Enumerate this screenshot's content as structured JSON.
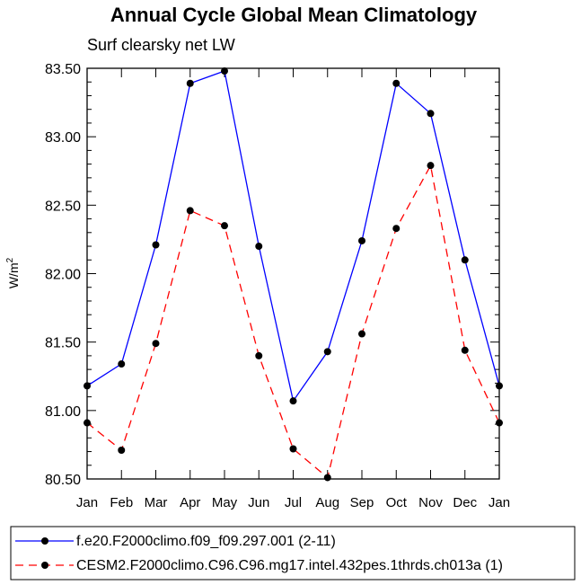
{
  "chart_data": {
    "type": "line",
    "title": "Annual Cycle Global Mean Climatology",
    "subtitle": "Surf clearsky net LW",
    "xlabel": "",
    "ylabel": "W/m",
    "ylabel_sup": "2",
    "categories": [
      "Jan",
      "Feb",
      "Mar",
      "Apr",
      "May",
      "Jun",
      "Jul",
      "Aug",
      "Sep",
      "Oct",
      "Nov",
      "Dec",
      "Jan"
    ],
    "ylim": [
      80.5,
      83.5
    ],
    "yticks": [
      "80.50",
      "81.00",
      "81.50",
      "82.00",
      "82.50",
      "83.00",
      "83.50"
    ],
    "ytick_values": [
      80.5,
      81.0,
      81.5,
      82.0,
      82.5,
      83.0,
      83.5
    ],
    "grid": false,
    "legend_position": "bottom",
    "series": [
      {
        "name": "f.e20.F2000climo.f09_f09.297.001 (2-11)",
        "color": "#0000ff",
        "dash": "solid",
        "values": [
          81.18,
          81.34,
          82.21,
          83.39,
          83.48,
          82.2,
          81.07,
          81.43,
          82.24,
          83.39,
          83.17,
          82.1,
          81.18
        ]
      },
      {
        "name": "CESM2.F2000climo.C96.C96.mg17.intel.432pes.1thrds.ch013a (1)",
        "color": "#ff0000",
        "dash": "dashed",
        "values": [
          80.91,
          80.71,
          81.49,
          82.46,
          82.35,
          81.4,
          80.72,
          80.51,
          81.56,
          82.33,
          82.79,
          81.44,
          80.91
        ]
      }
    ]
  }
}
